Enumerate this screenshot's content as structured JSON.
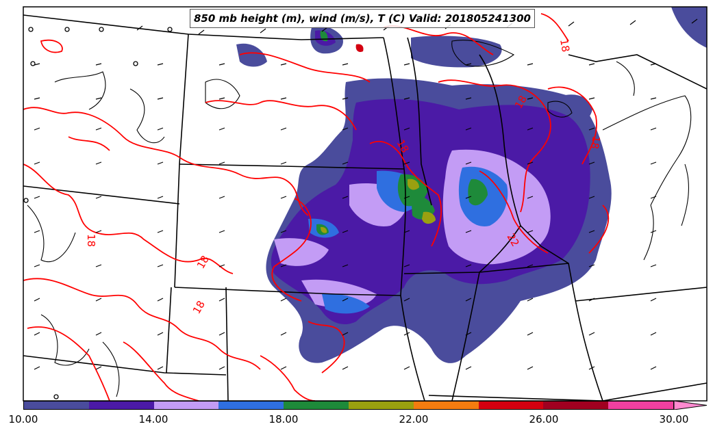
{
  "title": "850 mb height (m), wind (m/s), T (C) Valid: 201805241300",
  "colorbar": {
    "colors": [
      "#4a4c9c",
      "#4b1aa6",
      "#c39cf5",
      "#2f6fe0",
      "#1e8a3a",
      "#9aa010",
      "#f47c10",
      "#d40010",
      "#a00020",
      "#f040a0",
      "#ff8ad0"
    ],
    "ticks": [
      "10.00",
      "14.00",
      "18.00",
      "22.00",
      "26.00",
      "30.00"
    ],
    "min": 10,
    "max": 32,
    "step": 2,
    "extend": "max"
  },
  "contour_labels": [
    "18",
    "18",
    "18",
    "18",
    "18",
    "18",
    "22",
    "18"
  ],
  "colors": {
    "contour": "#ff0000",
    "boundary": "#000000",
    "barb": "#000000"
  }
}
